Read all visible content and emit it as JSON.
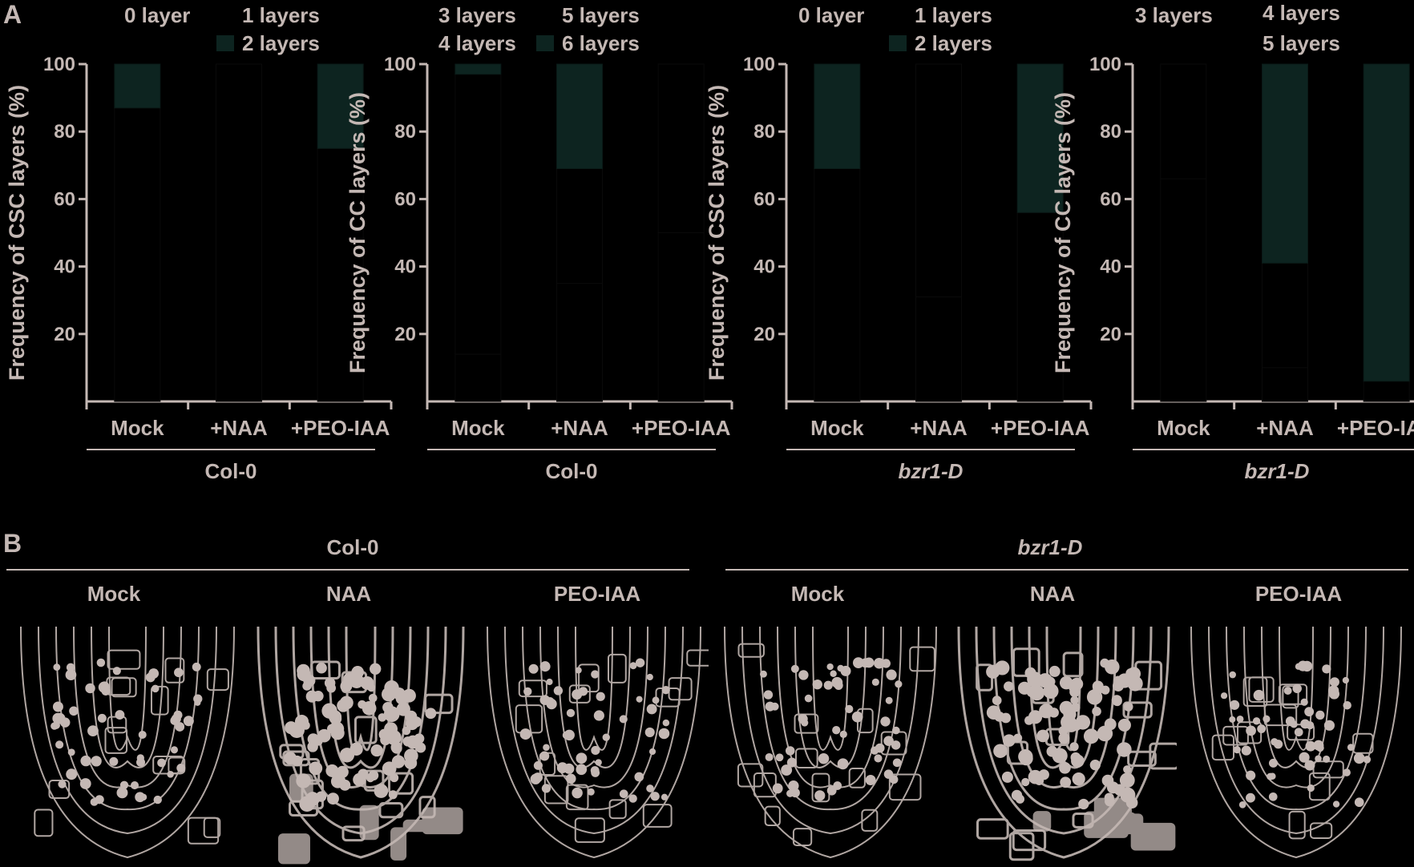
{
  "panel_a": {
    "letter": "A"
  },
  "panel_b": {
    "letter": "B",
    "groups": [
      {
        "genotype": "Col-0",
        "treatments": [
          "Mock",
          "NAA",
          "PEO-IAA"
        ]
      },
      {
        "genotype": "bzr1-D",
        "treatments": [
          "Mock",
          "NAA",
          "PEO-IAA"
        ]
      }
    ]
  },
  "colors": {
    "axis": "#c4b8b4",
    "bar_top": "#0d2420",
    "bar_other": "#000000",
    "background": "#000000",
    "stain": "#c4b8b4"
  },
  "chart_data": [
    {
      "type": "bar",
      "stacked": true,
      "ylabel": "Frequency of CSC layers (%)",
      "group_label": "Col-0",
      "categories": [
        "Mock",
        "+NAA",
        "+PEO-IAA"
      ],
      "ylim": [
        0,
        100
      ],
      "yticks": [
        20,
        40,
        60,
        80,
        100
      ],
      "legend": [
        {
          "name": "0 layer",
          "swatch": false
        },
        {
          "name": "1 layers",
          "swatch": false
        },
        {
          "name": "2 layers",
          "swatch": true
        }
      ],
      "series": [
        {
          "name": "0 layer",
          "values": [
            0,
            100,
            0
          ]
        },
        {
          "name": "1 layers",
          "values": [
            87,
            0,
            75
          ]
        },
        {
          "name": "2 layers",
          "values": [
            13,
            0,
            25
          ]
        }
      ]
    },
    {
      "type": "bar",
      "stacked": true,
      "ylabel": "Frequency of CC layers (%)",
      "group_label": "Col-0",
      "categories": [
        "Mock",
        "+NAA",
        "+PEO-IAA"
      ],
      "ylim": [
        0,
        100
      ],
      "yticks": [
        20,
        40,
        60,
        80,
        100
      ],
      "legend": [
        {
          "name": "3 layers",
          "swatch": false
        },
        {
          "name": "5 layers",
          "swatch": false
        },
        {
          "name": "4 layers",
          "swatch": false
        },
        {
          "name": "6 layers",
          "swatch": true
        }
      ],
      "series": [
        {
          "name": "3 layers",
          "values": [
            0,
            0,
            0
          ]
        },
        {
          "name": "4 layers",
          "values": [
            14,
            35,
            50
          ]
        },
        {
          "name": "5 layers",
          "values": [
            83,
            34,
            50
          ]
        },
        {
          "name": "6 layers",
          "values": [
            3,
            31,
            0
          ]
        }
      ]
    },
    {
      "type": "bar",
      "stacked": true,
      "ylabel": "Frequency of CSC layers (%)",
      "group_label": "bzr1-D",
      "group_italic": true,
      "categories": [
        "Mock",
        "+NAA",
        "+PEO-IAA"
      ],
      "ylim": [
        0,
        100
      ],
      "yticks": [
        20,
        40,
        60,
        80,
        100
      ],
      "legend": [
        {
          "name": "0 layer",
          "swatch": false
        },
        {
          "name": "1 layers",
          "swatch": false
        },
        {
          "name": "2 layers",
          "swatch": true
        }
      ],
      "series": [
        {
          "name": "0 layer",
          "values": [
            0,
            31,
            0
          ]
        },
        {
          "name": "1 layers",
          "values": [
            69,
            69,
            56
          ]
        },
        {
          "name": "2 layers",
          "values": [
            31,
            0,
            44
          ]
        }
      ]
    },
    {
      "type": "bar",
      "stacked": true,
      "ylabel": "Frequency of CC layers (%)",
      "group_label": "bzr1-D",
      "group_italic": true,
      "categories": [
        "Mock",
        "+NAA",
        "+PEO-IAA"
      ],
      "ylim": [
        0,
        100
      ],
      "yticks": [
        20,
        40,
        60,
        80,
        100
      ],
      "legend": [
        {
          "name": "3 layers",
          "swatch": false
        },
        {
          "name": "4 layers",
          "swatch": false
        },
        {
          "name": "5 layers",
          "swatch": false
        }
      ],
      "series": [
        {
          "name": "3 layers",
          "values": [
            66,
            10,
            0
          ]
        },
        {
          "name": "4 layers",
          "values": [
            34,
            31,
            6
          ]
        },
        {
          "name": "5 layers",
          "values": [
            0,
            59,
            94
          ]
        }
      ]
    }
  ]
}
